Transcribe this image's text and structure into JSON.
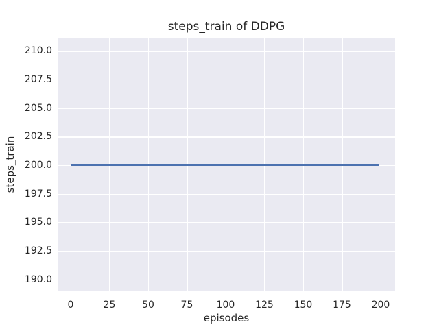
{
  "colors": {
    "figure_background": "#ffffff",
    "plot_background": "#eaeaf2",
    "grid": "#ffffff",
    "text": "#262626",
    "line": "#4c72b0"
  },
  "chart_data": {
    "type": "line",
    "title": "steps_train of DDPG",
    "xlabel": "episodes",
    "ylabel": "steps_train",
    "series": [
      {
        "name": "steps_train",
        "x": [
          0,
          199
        ],
        "y": [
          200,
          200
        ],
        "color": "#4c72b0"
      }
    ],
    "xlim": [
      -8.4,
      209.3
    ],
    "ylim": [
      188.95,
      211.1
    ],
    "xticks": [
      0,
      25,
      50,
      75,
      100,
      125,
      150,
      175,
      200
    ],
    "xtick_labels": [
      "0",
      "25",
      "50",
      "75",
      "100",
      "125",
      "150",
      "175",
      "200"
    ],
    "yticks": [
      190.0,
      192.5,
      195.0,
      197.5,
      200.0,
      202.5,
      205.0,
      207.5,
      210.0
    ],
    "ytick_labels": [
      "190.0",
      "192.5",
      "195.0",
      "197.5",
      "200.0",
      "202.5",
      "205.0",
      "207.5",
      "210.0"
    ],
    "grid": true,
    "legend": false
  }
}
